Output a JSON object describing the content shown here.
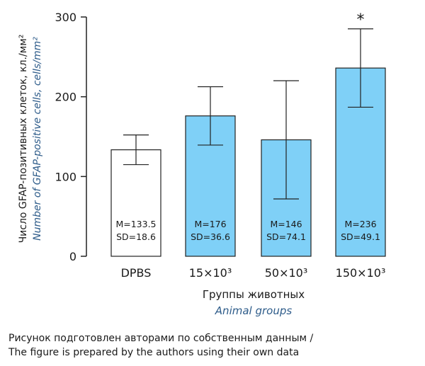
{
  "chart_data": {
    "type": "bar",
    "categories": [
      "DPBS",
      "15×10³",
      "50×10³",
      "150×10³"
    ],
    "values": [
      133.5,
      176,
      146,
      236
    ],
    "error_sd": [
      18.6,
      36.6,
      74.1,
      49.1
    ],
    "bar_labels": [
      [
        "M=133.5",
        "SD=18.6"
      ],
      [
        "M=176",
        "SD=36.6"
      ],
      [
        "M=146",
        "SD=74.1"
      ],
      [
        "M=236",
        "SD=49.1"
      ]
    ],
    "significance": [
      "",
      "",
      "",
      "*"
    ],
    "ylabel_ru": "Число GFAP-позитивных клеток, кл./мм²",
    "ylabel_en": "Number of GFAP-positive cells, cells/mm²",
    "xlabel_ru": "Группы животных",
    "xlabel_en": "Animal groups",
    "ylim": [
      0,
      300
    ],
    "yticks": [
      0,
      100,
      200,
      300
    ],
    "grid": false,
    "colors": {
      "control": "#ffffff",
      "treated": "#7fd0f7",
      "outline": "#222222",
      "english_text": "#2e5c8a"
    }
  },
  "caption": {
    "line1": "Рисунок подготовлен авторами по собственным данным /",
    "line2": "The figure is prepared by the authors using their own data"
  }
}
